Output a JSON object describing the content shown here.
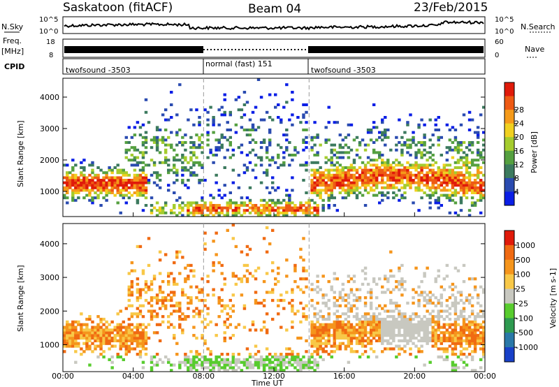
{
  "header": {
    "station": "Saskatoon (fitACF)",
    "beam": "Beam 04",
    "date": "23/Feb/2015"
  },
  "strips": {
    "nsky_label": "N.Sky",
    "nsky_ticks": [
      "10^5",
      "10^0"
    ],
    "nsearch_label": "N.Search",
    "nsearch_ticks": [
      "10^5",
      "10^0"
    ],
    "freq_label": "Freq.",
    "freq_unit": "[MHz]",
    "freq_ticks": [
      "18",
      "8"
    ],
    "nave_label": "Nave",
    "nave_ticks": [
      "60",
      "0"
    ],
    "cpid_label": "CPID",
    "cpid_segments": [
      {
        "label": "twofsound -3503",
        "start": 0,
        "end": 8
      },
      {
        "label": "normal (fast) 151",
        "start": 8,
        "end": 14
      },
      {
        "label": "twofsound -3503",
        "start": 14,
        "end": 24
      }
    ]
  },
  "chart_data": [
    {
      "type": "heatmap",
      "name": "power-panel",
      "ylabel": "Slant Range [km]",
      "x_ticks": [
        "00:00",
        "04:00",
        "08:00",
        "12:00",
        "16:00",
        "20:00",
        "00:00"
      ],
      "xlim_hours": [
        0,
        24
      ],
      "ylim": [
        200,
        4600
      ],
      "y_ticks": [
        1000,
        2000,
        3000,
        4000
      ],
      "colorbar": {
        "label": "Power [dB]",
        "ticks": [
          "4",
          "8",
          "12",
          "16",
          "20",
          "24",
          "28"
        ],
        "colors": [
          "#0a1ee6",
          "#2a4bb0",
          "#3c7a5e",
          "#55a040",
          "#a5cc2e",
          "#f0d020",
          "#f59a1a",
          "#ee5a14",
          "#e01a0a"
        ]
      }
    },
    {
      "type": "heatmap",
      "name": "velocity-panel",
      "ylabel": "Slant Range [km]",
      "xlabel": "Time UT",
      "x_ticks": [
        "00:00",
        "04:00",
        "08:00",
        "12:00",
        "16:00",
        "20:00",
        "00:00"
      ],
      "xlim_hours": [
        0,
        24
      ],
      "ylim": [
        200,
        4600
      ],
      "y_ticks": [
        1000,
        2000,
        3000,
        4000
      ],
      "colorbar": {
        "label": "Velocity [m s-1]",
        "ticks": [
          "1000",
          "500",
          "100",
          "25",
          "-25",
          "-100",
          "-500",
          "-1000"
        ],
        "colors": [
          "#1840c8",
          "#2a78a8",
          "#2e9a50",
          "#58cc2e",
          "#c8c8c0",
          "#f8c848",
          "#f5951c",
          "#f06a12",
          "#e01a0a"
        ]
      }
    }
  ]
}
